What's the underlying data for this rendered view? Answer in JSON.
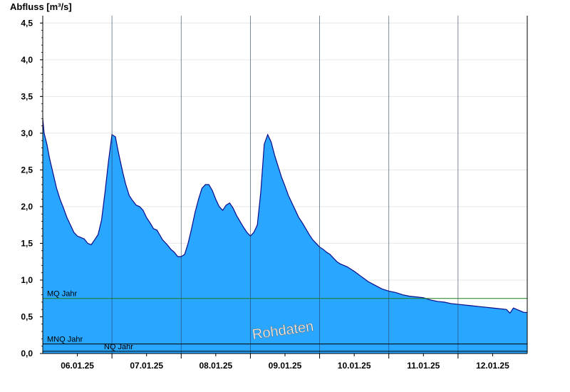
{
  "chart_data": {
    "type": "area",
    "title": "Abfluss [m³/s]",
    "xlabel": "",
    "ylabel": "Abfluss [m³/s]",
    "ylim": [
      0,
      4.6
    ],
    "y_ticks": [
      0.0,
      0.5,
      1.0,
      1.5,
      2.0,
      2.5,
      3.0,
      3.5,
      4.0,
      4.5
    ],
    "y_tick_labels": [
      "0,0",
      "0,5",
      "1,0",
      "1,5",
      "2,0",
      "2,5",
      "3,0",
      "3,5",
      "4,0",
      "4,5"
    ],
    "x_unit": "day",
    "xlim": [
      0,
      7
    ],
    "x_ticks": [
      0.5,
      1.5,
      2.5,
      3.5,
      4.5,
      5.5,
      6.5
    ],
    "x_tick_labels": [
      "06.01.25",
      "07.01.25",
      "08.01.25",
      "09.01.25",
      "10.01.25",
      "11.01.25",
      "12.01.25"
    ],
    "day_boundaries": [
      1,
      2,
      3,
      4,
      5,
      6
    ],
    "grid": true,
    "fill_color": "#29a6ff",
    "line_color": "#0a0a8c",
    "series": [
      {
        "x": [
          0.0,
          0.02,
          0.06,
          0.1,
          0.15,
          0.2,
          0.25,
          0.3,
          0.35,
          0.4,
          0.45,
          0.5,
          0.55,
          0.6,
          0.65,
          0.7,
          0.75,
          0.8,
          0.85,
          0.9,
          0.95,
          1.0,
          1.05,
          1.08,
          1.12,
          1.16,
          1.2,
          1.25,
          1.3,
          1.35,
          1.4,
          1.45,
          1.5,
          1.55,
          1.6,
          1.65,
          1.7,
          1.73,
          1.76,
          1.8,
          1.85,
          1.9,
          1.95,
          2.0,
          2.05,
          2.1,
          2.15,
          2.2,
          2.25,
          2.3,
          2.35,
          2.4,
          2.45,
          2.5,
          2.55,
          2.6,
          2.65,
          2.7,
          2.75,
          2.8,
          2.85,
          2.9,
          2.95,
          3.0,
          3.05,
          3.1,
          3.15,
          3.2,
          3.25,
          3.3,
          3.35,
          3.4,
          3.45,
          3.5,
          3.55,
          3.6,
          3.65,
          3.7,
          3.75,
          3.8,
          3.85,
          3.9,
          3.95,
          4.0,
          4.05,
          4.1,
          4.15,
          4.2,
          4.25,
          4.3,
          4.35,
          4.4,
          4.45,
          4.5,
          4.6,
          4.7,
          4.8,
          4.9,
          5.0,
          5.1,
          5.2,
          5.3,
          5.4,
          5.5,
          5.6,
          5.7,
          5.8,
          5.9,
          6.0,
          6.1,
          6.2,
          6.3,
          6.4,
          6.5,
          6.6,
          6.7,
          6.75,
          6.8,
          6.85,
          6.9,
          6.95,
          7.0
        ],
        "values": [
          3.2,
          3.0,
          2.85,
          2.65,
          2.45,
          2.25,
          2.1,
          1.98,
          1.85,
          1.75,
          1.65,
          1.6,
          1.58,
          1.56,
          1.5,
          1.48,
          1.55,
          1.62,
          1.82,
          2.2,
          2.62,
          2.98,
          2.95,
          2.8,
          2.62,
          2.45,
          2.3,
          2.15,
          2.08,
          2.02,
          2.0,
          1.95,
          1.85,
          1.78,
          1.7,
          1.68,
          1.6,
          1.55,
          1.52,
          1.48,
          1.42,
          1.38,
          1.32,
          1.32,
          1.35,
          1.5,
          1.7,
          1.92,
          2.1,
          2.25,
          2.3,
          2.3,
          2.22,
          2.1,
          2.0,
          1.95,
          2.02,
          2.05,
          1.98,
          1.88,
          1.8,
          1.72,
          1.65,
          1.6,
          1.65,
          1.75,
          2.2,
          2.85,
          2.98,
          2.88,
          2.7,
          2.55,
          2.4,
          2.28,
          2.15,
          2.05,
          1.95,
          1.85,
          1.78,
          1.7,
          1.62,
          1.55,
          1.5,
          1.45,
          1.42,
          1.38,
          1.35,
          1.3,
          1.25,
          1.22,
          1.2,
          1.18,
          1.15,
          1.12,
          1.05,
          0.98,
          0.93,
          0.88,
          0.85,
          0.83,
          0.8,
          0.78,
          0.77,
          0.76,
          0.73,
          0.71,
          0.7,
          0.68,
          0.67,
          0.66,
          0.65,
          0.64,
          0.63,
          0.62,
          0.61,
          0.6,
          0.55,
          0.62,
          0.6,
          0.58,
          0.56,
          0.56
        ]
      }
    ],
    "reference_lines": [
      {
        "label": "MQ Jahr",
        "value": 0.75,
        "color": "#1f7a1f"
      },
      {
        "label": "MNQ Jahr",
        "value": 0.13,
        "color": "#000000"
      },
      {
        "label": "NQ Jahr",
        "value": 0.03,
        "color": "#000000"
      }
    ],
    "annotation": "Rohdaten"
  }
}
